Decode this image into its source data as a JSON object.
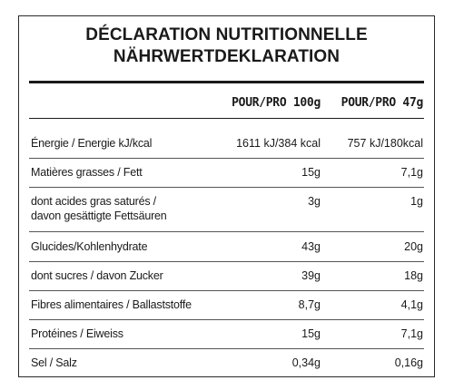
{
  "title_line1": "DÉCLARATION NUTRITIONNELLE",
  "title_line2": "NÄHRWERTDEKLARATION",
  "columns": [
    "POUR/PRO 100g",
    "POUR/PRO 47g"
  ],
  "rows": [
    {
      "label": "Énergie / Energie kJ/kcal",
      "v100": "1611 kJ/384 kcal",
      "v47": "757 kJ/180kcal"
    },
    {
      "label": "Matières grasses / Fett",
      "v100": "15g",
      "v47": "7,1g"
    },
    {
      "label": "dont acides gras saturés /",
      "label2": "davon gesättigte Fettsäuren",
      "v100": "3g",
      "v47": "1g"
    },
    {
      "label": "Glucides/Kohlenhydrate",
      "v100": "43g",
      "v47": "20g"
    },
    {
      "label": "dont sucres / davon Zucker",
      "v100": "39g",
      "v47": "18g"
    },
    {
      "label": "Fibres alimentaires / Ballaststoffe",
      "v100": "8,7g",
      "v47": "4,1g"
    },
    {
      "label": "Protéines / Eiweiss",
      "v100": "15g",
      "v47": "7,1g"
    },
    {
      "label": "Sel / Salz",
      "v100": "0,34g",
      "v47": "0,16g"
    }
  ]
}
